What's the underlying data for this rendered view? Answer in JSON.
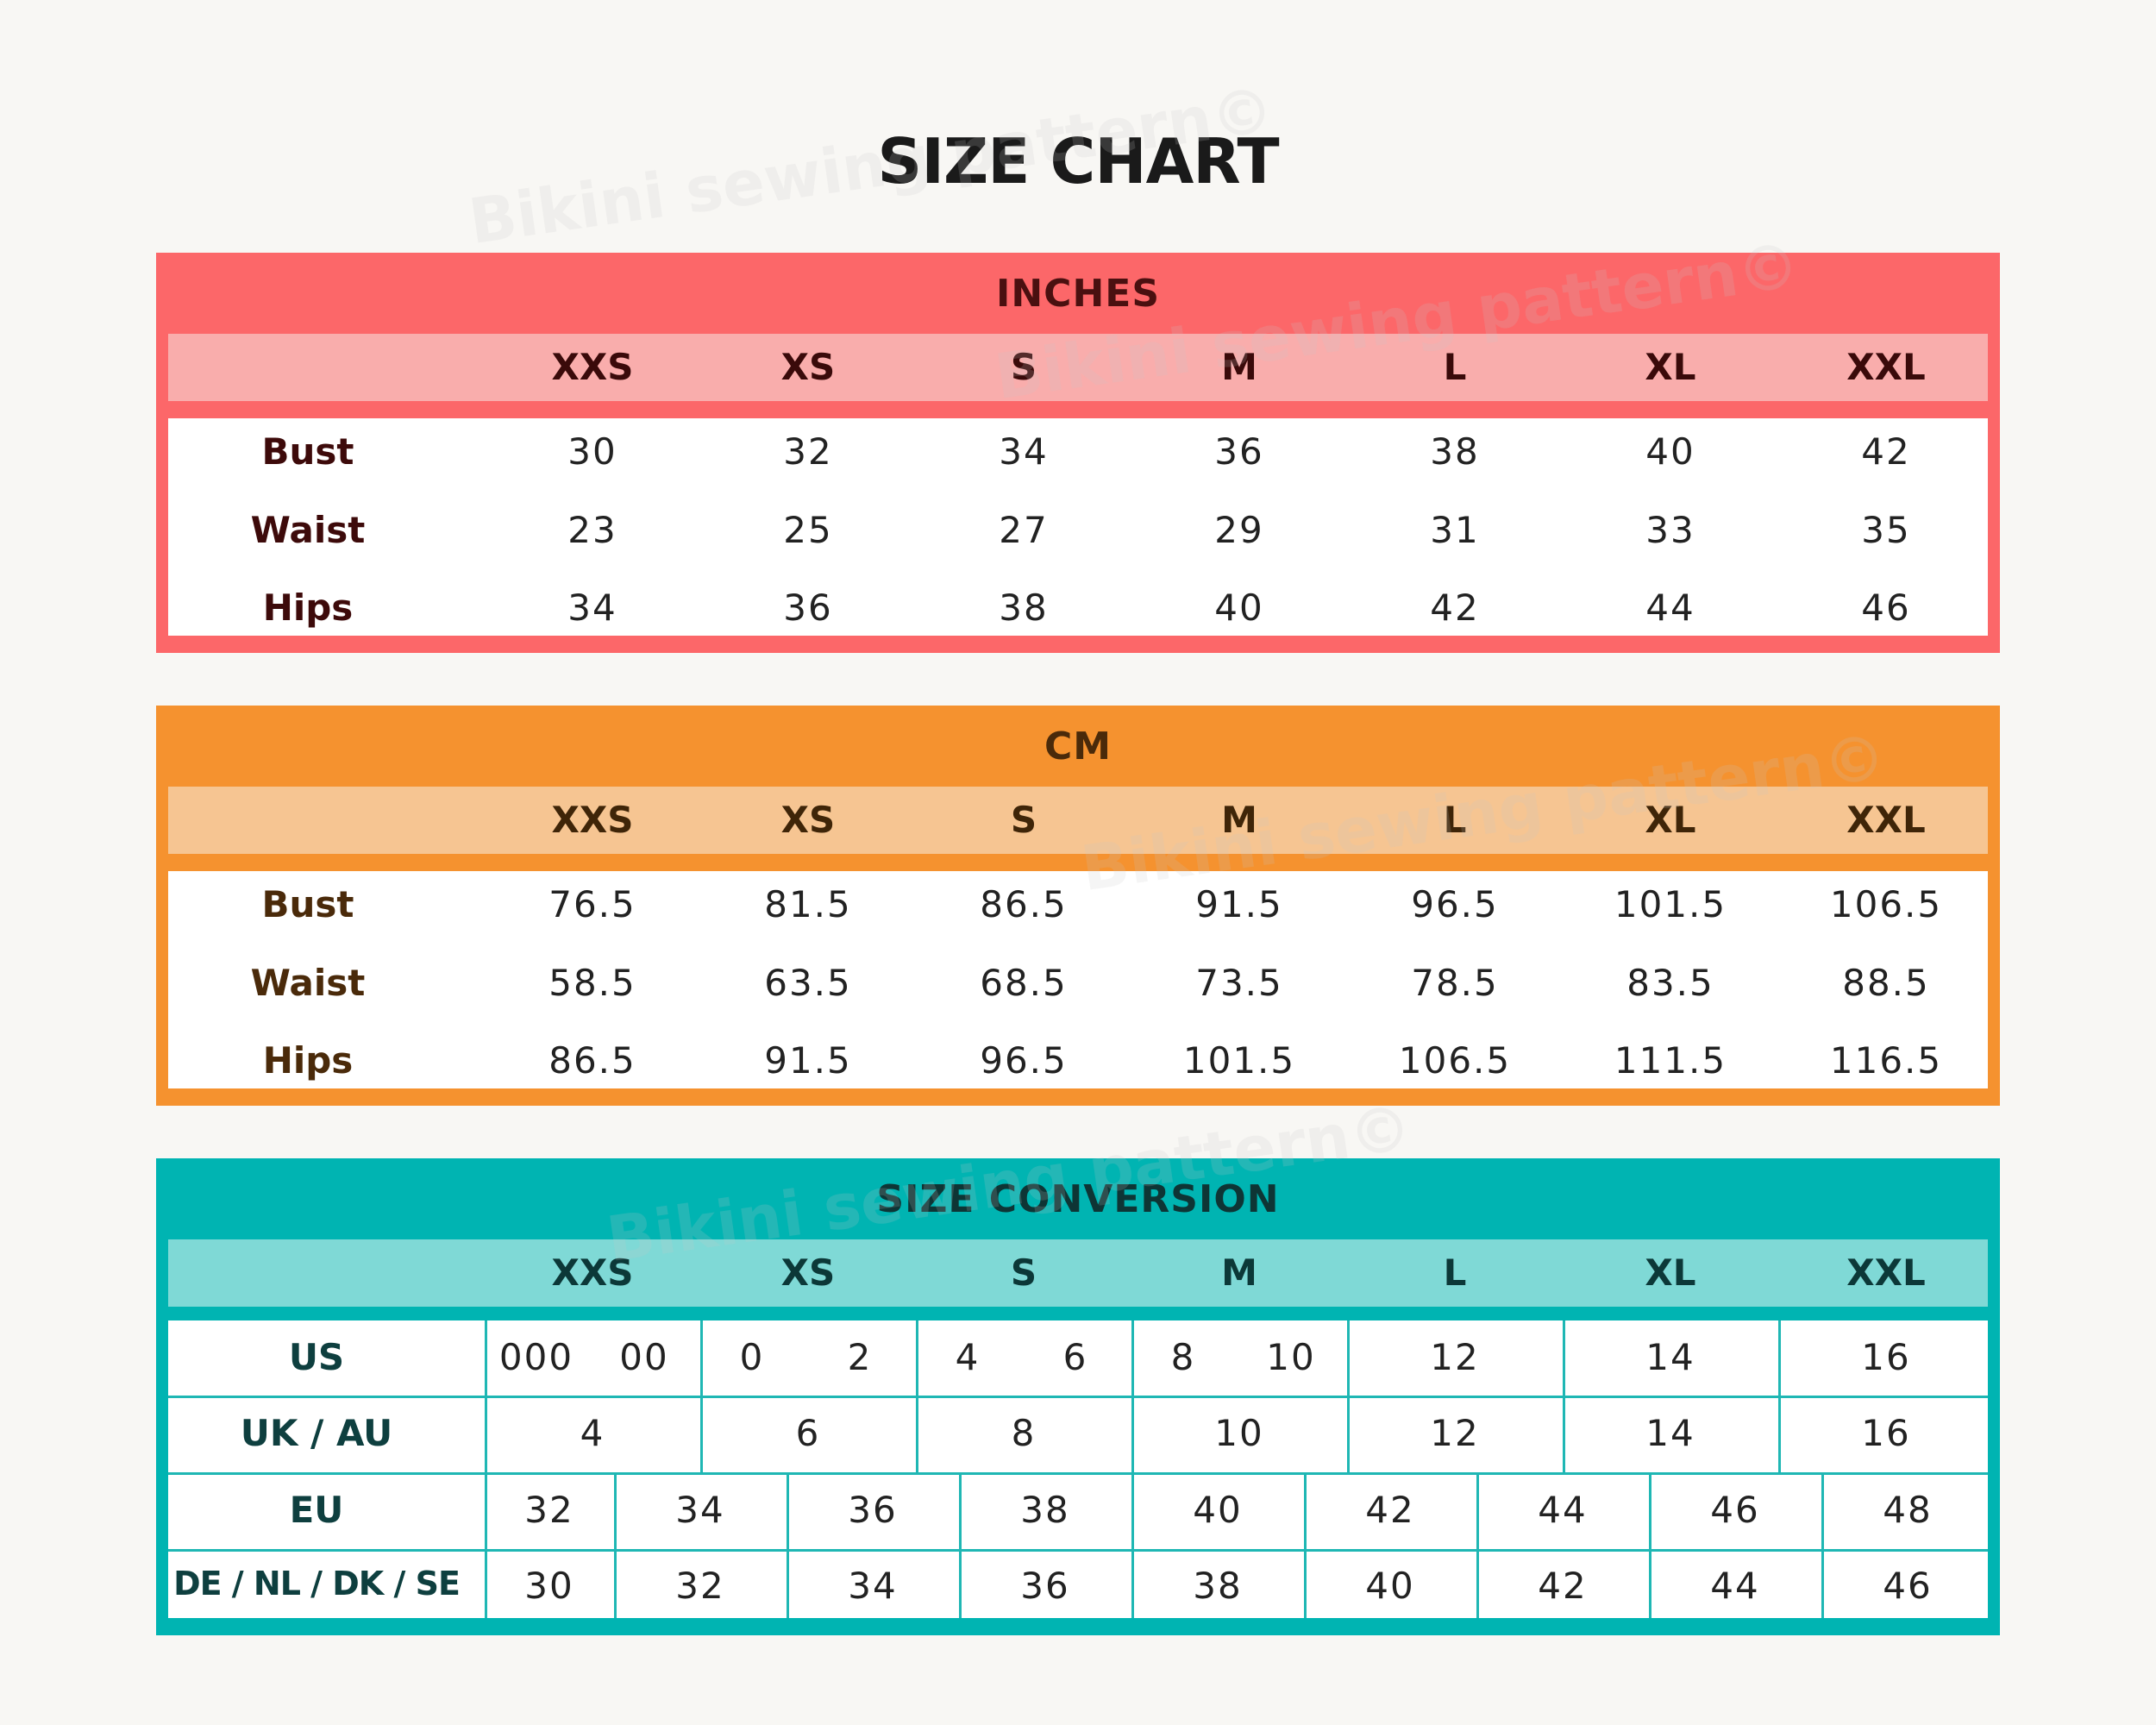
{
  "title": "SIZE CHART",
  "watermark_text": "Bikini sewing pattern©",
  "sizes": [
    "XXS",
    "XS",
    "S",
    "M",
    "L",
    "XL",
    "XXL"
  ],
  "inches": {
    "heading": "INCHES",
    "rows": [
      {
        "label": "Bust",
        "values": [
          "30",
          "32",
          "34",
          "36",
          "38",
          "40",
          "42"
        ]
      },
      {
        "label": "Waist",
        "values": [
          "23",
          "25",
          "27",
          "29",
          "31",
          "33",
          "35"
        ]
      },
      {
        "label": "Hips",
        "values": [
          "34",
          "36",
          "38",
          "40",
          "42",
          "44",
          "46"
        ]
      }
    ]
  },
  "cm": {
    "heading": "CM",
    "rows": [
      {
        "label": "Bust",
        "values": [
          "76.5",
          "81.5",
          "86.5",
          "91.5",
          "96.5",
          "101.5",
          "106.5"
        ]
      },
      {
        "label": "Waist",
        "values": [
          "58.5",
          "63.5",
          "68.5",
          "73.5",
          "78.5",
          "83.5",
          "88.5"
        ]
      },
      {
        "label": "Hips",
        "values": [
          "86.5",
          "91.5",
          "96.5",
          "101.5",
          "106.5",
          "111.5",
          "116.5"
        ]
      }
    ]
  },
  "conversion": {
    "heading": "SIZE CONVERSION",
    "us": {
      "label": "US",
      "values": [
        "000",
        "00",
        "0",
        "2",
        "4",
        "6",
        "8",
        "10",
        "12",
        "14",
        "16"
      ]
    },
    "uk_au": {
      "label": "UK / AU",
      "values": [
        "4",
        "6",
        "8",
        "10",
        "12",
        "14",
        "16"
      ]
    },
    "eu": {
      "label": "EU",
      "values": [
        "32",
        "34",
        "36",
        "38",
        "40",
        "42",
        "44",
        "46",
        "48"
      ]
    },
    "de_nl_dk_se": {
      "label": "DE / NL / DK / SE",
      "values": [
        "30",
        "32",
        "34",
        "36",
        "38",
        "40",
        "42",
        "44",
        "46"
      ]
    }
  },
  "colors": {
    "inches_accent": "#fc6769",
    "cm_accent": "#f5922f",
    "conversion_accent": "#00b4b2"
  }
}
